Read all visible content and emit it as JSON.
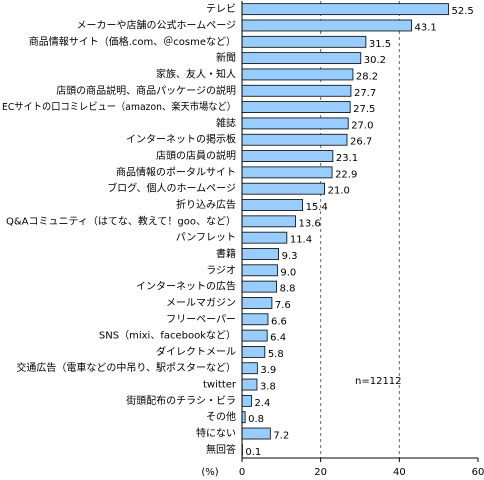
{
  "chart_data": {
    "type": "barh",
    "categories": [
      "テレビ",
      "メーカーや店舗の公式ホームページ",
      "商品情報サイト（価格.com、＠cosmeなど）",
      "新聞",
      "家族、友人・知人",
      "店頭の商品説明、商品パッケージの説明",
      "ECサイトの口コミレビュー（amazon、楽天市場など）",
      "雑誌",
      "インターネットの掲示板",
      "店頭の店員の説明",
      "商品情報のポータルサイト",
      "ブログ、個人のホームページ",
      "折り込み広告",
      "Q&Aコミュニティ（はてな、教えて！goo、など）",
      "パンフレット",
      "書籍",
      "ラジオ",
      "インターネットの広告",
      "メールマガジン",
      "フリーペーパー",
      "SNS（mixi、facebookなど）",
      "ダイレクトメール",
      "交通広告（電車などの中吊り、駅ポスターなど）",
      "twitter",
      "街頭配布のチラシ・ビラ",
      "その他",
      "特にない",
      "無回答"
    ],
    "values": [
      52.5,
      43.1,
      31.5,
      30.2,
      28.2,
      27.7,
      27.5,
      27.0,
      26.7,
      23.1,
      22.9,
      21.0,
      15.4,
      13.6,
      11.4,
      9.3,
      9.0,
      8.8,
      7.6,
      6.6,
      6.4,
      5.8,
      3.9,
      3.8,
      2.4,
      0.8,
      7.2,
      0.1
    ],
    "value_labels": [
      "52.5",
      "43.1",
      "31.5",
      "30.2",
      "28.2",
      "27.7",
      "27.5",
      "27.0",
      "26.7",
      "23.1",
      "22.9",
      "21.0",
      "15.4",
      "13.6",
      "11.4",
      "9.3",
      "9.0",
      "8.8",
      "7.6",
      "6.6",
      "6.4",
      "5.8",
      "3.9",
      "3.8",
      "2.4",
      "0.8",
      "7.2",
      "0.1"
    ],
    "color": "#99ccff",
    "xlim": [
      0,
      60
    ],
    "xticks": [
      0,
      20,
      40,
      60
    ],
    "grid": true,
    "xlabel": "(%)",
    "annotation": "n=12112"
  }
}
